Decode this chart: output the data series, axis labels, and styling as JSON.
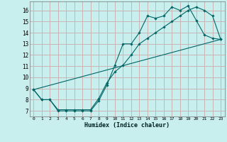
{
  "xlabel": "Humidex (Indice chaleur)",
  "bg_color": "#c8eeee",
  "grid_color": "#c8b4b4",
  "line_color": "#006666",
  "xlim": [
    -0.5,
    23.5
  ],
  "ylim": [
    6.5,
    16.8
  ],
  "xticks": [
    0,
    1,
    2,
    3,
    4,
    5,
    6,
    7,
    8,
    9,
    10,
    11,
    12,
    13,
    14,
    15,
    16,
    17,
    18,
    19,
    20,
    21,
    22,
    23
  ],
  "yticks": [
    7,
    8,
    9,
    10,
    11,
    12,
    13,
    14,
    15,
    16
  ],
  "line1_x": [
    0,
    1,
    2,
    3,
    4,
    5,
    6,
    7,
    8,
    9,
    10,
    11,
    12,
    13,
    14,
    15,
    16,
    17,
    18,
    19,
    20,
    21,
    22,
    23
  ],
  "line1_y": [
    8.9,
    8.0,
    8.0,
    7.0,
    7.0,
    7.0,
    7.0,
    7.0,
    7.9,
    9.3,
    11.1,
    13.0,
    13.0,
    14.0,
    15.5,
    15.3,
    15.5,
    16.3,
    16.0,
    16.4,
    15.1,
    13.8,
    13.5,
    13.4
  ],
  "line2_x": [
    0,
    1,
    2,
    3,
    4,
    5,
    6,
    7,
    8,
    9,
    10,
    11,
    12,
    13,
    14,
    15,
    16,
    17,
    18,
    19,
    20,
    21,
    22,
    23
  ],
  "line2_y": [
    8.9,
    8.0,
    8.0,
    7.1,
    7.1,
    7.1,
    7.1,
    7.1,
    8.1,
    9.5,
    10.5,
    11.1,
    12.0,
    13.0,
    13.5,
    14.0,
    14.5,
    15.0,
    15.5,
    16.0,
    16.3,
    16.0,
    15.5,
    13.4
  ],
  "line3_x": [
    0,
    23
  ],
  "line3_y": [
    8.9,
    13.4
  ]
}
